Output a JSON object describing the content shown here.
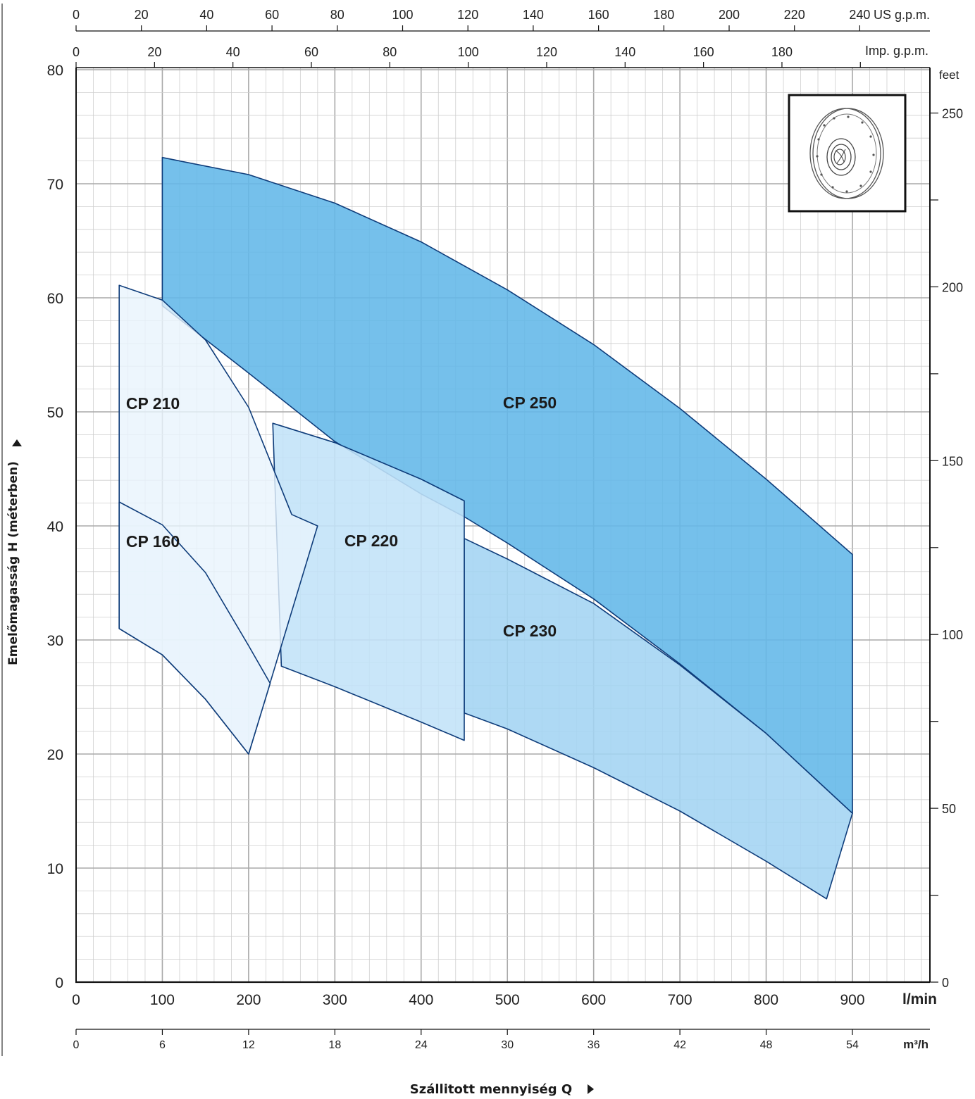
{
  "chart_data": {
    "type": "area",
    "title": "",
    "xlabel": "Szállitott mennyiség Q",
    "ylabel": "Emelőmagasság H (méterben)",
    "x_unit": "l/min",
    "y_unit": "",
    "xlim": [
      0,
      1000
    ],
    "ylim": [
      0,
      80
    ],
    "grid": true,
    "x_ticks": [
      "0",
      "100",
      "200",
      "300",
      "400",
      "500",
      "600",
      "700",
      "800",
      "900"
    ],
    "y_ticks": [
      "0",
      "10",
      "20",
      "30",
      "40",
      "50",
      "60",
      "70",
      "80"
    ],
    "secondary_axes": {
      "us_gpm": {
        "unit": "US g.p.m.",
        "ticks": [
          "0",
          "20",
          "40",
          "60",
          "80",
          "100",
          "120",
          "140",
          "160",
          "180",
          "200",
          "220",
          "240"
        ]
      },
      "imp_gpm": {
        "unit": "Imp. g.p.m.",
        "ticks": [
          "0",
          "20",
          "40",
          "60",
          "80",
          "100",
          "120",
          "140",
          "160",
          "180"
        ]
      },
      "m3h": {
        "unit": "m³/h",
        "ticks": [
          "0",
          "6",
          "12",
          "18",
          "24",
          "30",
          "36",
          "42",
          "48",
          "54"
        ]
      },
      "feet": {
        "unit": "feet",
        "ticks": [
          "0",
          "50",
          "100",
          "150",
          "200",
          "250"
        ]
      }
    },
    "series": [
      {
        "name": "CP 250",
        "color": "#62b7e8",
        "upper": [
          [
            100,
            72.3
          ],
          [
            200,
            70.8
          ],
          [
            300,
            68.3
          ],
          [
            400,
            64.9
          ],
          [
            500,
            60.7
          ],
          [
            600,
            55.9
          ],
          [
            700,
            50.3
          ],
          [
            800,
            44.1
          ],
          [
            900,
            37.5
          ]
        ],
        "lower": [
          [
            100,
            59.3
          ],
          [
            200,
            53.4
          ],
          [
            300,
            47.4
          ],
          [
            400,
            42.8
          ],
          [
            450,
            40.8
          ],
          [
            500,
            38.5
          ],
          [
            600,
            33.6
          ],
          [
            700,
            27.9
          ],
          [
            800,
            21.8
          ],
          [
            900,
            14.8
          ]
        ]
      },
      {
        "name": "CP 230",
        "color": "#a3d4f2",
        "upper": [
          [
            450,
            38.9
          ],
          [
            500,
            37.1
          ],
          [
            600,
            33.2
          ],
          [
            700,
            27.8
          ],
          [
            800,
            21.8
          ],
          [
            900,
            14.8
          ]
        ],
        "lower": [
          [
            450,
            23.6
          ],
          [
            500,
            22.2
          ],
          [
            600,
            18.8
          ],
          [
            700,
            15.0
          ],
          [
            800,
            10.6
          ],
          [
            870,
            7.3
          ]
        ]
      },
      {
        "name": "CP 220",
        "color": "#c2e3f8",
        "upper": [
          [
            228,
            49.0
          ],
          [
            300,
            47.3
          ],
          [
            400,
            44.1
          ],
          [
            450,
            42.2
          ]
        ],
        "lower": [
          [
            238,
            27.7
          ],
          [
            300,
            25.9
          ],
          [
            400,
            22.8
          ],
          [
            450,
            21.2
          ]
        ]
      },
      {
        "name": "CP 210",
        "color": "#e9f4fc",
        "upper": [
          [
            50,
            61.1
          ],
          [
            100,
            59.8
          ],
          [
            150,
            56.3
          ],
          [
            200,
            50.4
          ],
          [
            250,
            41.0
          ],
          [
            280,
            40.0
          ]
        ],
        "lower": [
          [
            50,
            31.0
          ],
          [
            100,
            28.7
          ],
          [
            150,
            24.8
          ],
          [
            200,
            20.0
          ]
        ]
      },
      {
        "name": "CP 160",
        "color": "#e9f4fc",
        "upper": [
          [
            50,
            42.1
          ],
          [
            100,
            40.1
          ],
          [
            150,
            35.9
          ],
          [
            200,
            29.5
          ],
          [
            225,
            26.2
          ]
        ],
        "lower": [
          [
            50,
            31.0
          ],
          [
            100,
            28.7
          ],
          [
            150,
            24.8
          ],
          [
            200,
            20.0
          ]
        ]
      }
    ]
  }
}
